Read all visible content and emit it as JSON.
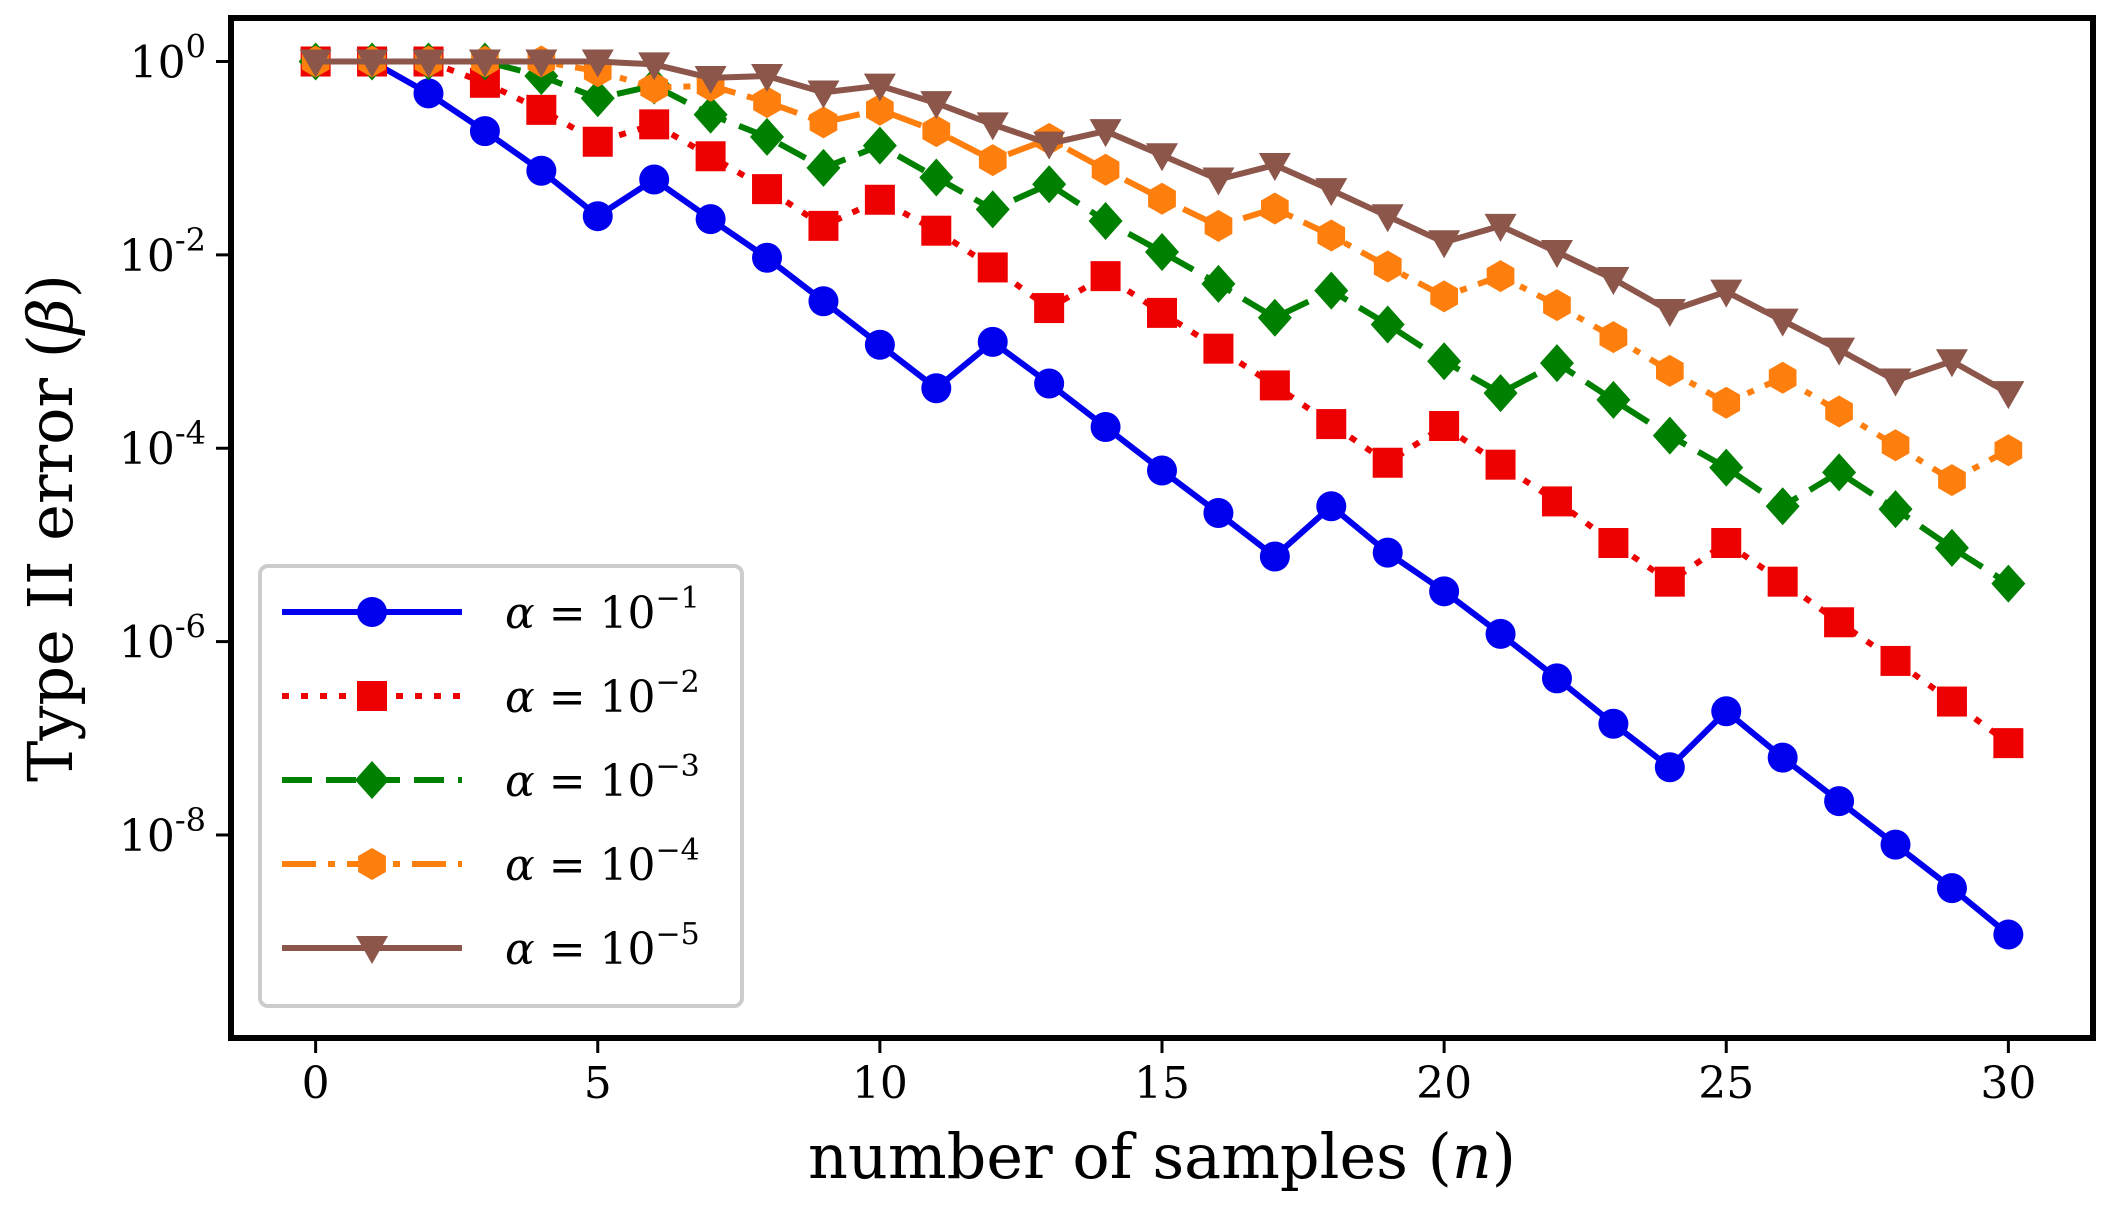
{
  "chart_data": {
    "type": "line",
    "xlabel": "number of samples (",
    "xlabel_math": "n",
    "xlabel_end": ")",
    "ylabel": "Type II error (",
    "ylabel_math": "β",
    "ylabel_end": ")",
    "xlim": [
      -1.5,
      31.5
    ],
    "ylim_log10": [
      -10.1,
      0.45
    ],
    "y_scale": "log",
    "x_ticks": [
      {
        "value": 0,
        "label": "0"
      },
      {
        "value": 5,
        "label": "5"
      },
      {
        "value": 10,
        "label": "10"
      },
      {
        "value": 15,
        "label": "15"
      },
      {
        "value": 20,
        "label": "20"
      },
      {
        "value": 25,
        "label": "25"
      },
      {
        "value": 30,
        "label": "30"
      }
    ],
    "y_ticks": [
      {
        "exp": 0,
        "base": "10",
        "sup": "0"
      },
      {
        "exp": -2,
        "base": "10",
        "sup": "-2"
      },
      {
        "exp": -4,
        "base": "10",
        "sup": "-4"
      },
      {
        "exp": -6,
        "base": "10",
        "sup": "-6"
      },
      {
        "exp": -8,
        "base": "10",
        "sup": "-8"
      }
    ],
    "grid": false,
    "legend_position": "bottom-left",
    "x": [
      0,
      1,
      2,
      3,
      4,
      5,
      6,
      7,
      8,
      9,
      10,
      11,
      12,
      13,
      14,
      15,
      16,
      17,
      18,
      19,
      20,
      21,
      22,
      23,
      24,
      25,
      26,
      27,
      28,
      29,
      30
    ],
    "series": [
      {
        "name_prefix": "α",
        "name_mid": " = 10",
        "name_sup": "−1",
        "color": "#0000ee",
        "linestyle": "solid",
        "marker": "circle",
        "log10_values": [
          0,
          0,
          -0.33,
          -0.72,
          -1.13,
          -1.6,
          -1.22,
          -1.63,
          -2.03,
          -2.48,
          -2.93,
          -3.38,
          -2.9,
          -3.33,
          -3.78,
          -4.23,
          -4.67,
          -5.12,
          -4.6,
          -5.08,
          -5.48,
          -5.92,
          -6.38,
          -6.85,
          -7.3,
          -6.72,
          -7.2,
          -7.65,
          -8.1,
          -8.55,
          -9.03
        ]
      },
      {
        "name_prefix": "α",
        "name_mid": " = 10",
        "name_sup": "−2",
        "color": "#ee0000",
        "linestyle": "dotted",
        "marker": "square",
        "log10_values": [
          0,
          0,
          0,
          -0.22,
          -0.5,
          -0.83,
          -0.65,
          -0.98,
          -1.32,
          -1.7,
          -1.43,
          -1.75,
          -2.13,
          -2.55,
          -2.22,
          -2.6,
          -2.97,
          -3.35,
          -3.75,
          -4.15,
          -3.77,
          -4.17,
          -4.55,
          -4.98,
          -5.38,
          -4.98,
          -5.38,
          -5.8,
          -6.2,
          -6.62,
          -7.05
        ]
      },
      {
        "name_prefix": "α",
        "name_mid": " = 10",
        "name_sup": "−3",
        "color": "#008000",
        "linestyle": "dashed",
        "marker": "diamond",
        "log10_values": [
          0,
          0,
          0,
          0,
          -0.15,
          -0.38,
          -0.25,
          -0.55,
          -0.78,
          -1.1,
          -0.87,
          -1.2,
          -1.53,
          -1.27,
          -1.65,
          -1.97,
          -2.3,
          -2.65,
          -2.37,
          -2.72,
          -3.1,
          -3.43,
          -3.12,
          -3.5,
          -3.87,
          -4.2,
          -4.6,
          -4.25,
          -4.63,
          -5.03,
          -5.4
        ]
      },
      {
        "name_prefix": "α",
        "name_mid": " = 10",
        "name_sup": "−4",
        "color": "#ff7f0e",
        "linestyle": "dashdot",
        "marker": "hexagon",
        "log10_values": [
          0,
          0,
          0,
          0,
          0,
          -0.1,
          -0.27,
          -0.25,
          -0.42,
          -0.63,
          -0.5,
          -0.72,
          -1.02,
          -0.8,
          -1.12,
          -1.42,
          -1.7,
          -1.52,
          -1.8,
          -2.12,
          -2.43,
          -2.22,
          -2.52,
          -2.85,
          -3.2,
          -3.53,
          -3.27,
          -3.62,
          -3.97,
          -4.33,
          -4.02
        ]
      },
      {
        "name_prefix": "α",
        "name_mid": " = 10",
        "name_sup": "−5",
        "color": "#8c564b",
        "linestyle": "solid",
        "marker": "triangle-down",
        "log10_values": [
          0,
          0,
          0,
          0,
          0,
          0,
          -0.03,
          -0.17,
          -0.15,
          -0.32,
          -0.25,
          -0.43,
          -0.65,
          -0.85,
          -0.72,
          -0.97,
          -1.22,
          -1.07,
          -1.33,
          -1.6,
          -1.87,
          -1.7,
          -1.97,
          -2.25,
          -2.58,
          -2.38,
          -2.68,
          -2.98,
          -3.3,
          -3.1,
          -3.43
        ]
      }
    ]
  }
}
